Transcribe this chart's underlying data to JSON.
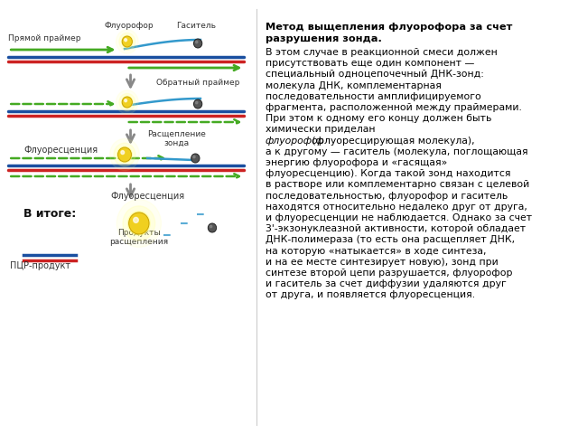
{
  "title_bold": "Метод выщепления флуорофора за счет\nразрушения зонда.",
  "body_text": "В этом случае в реакционной смеси должен\nприсутствовать еще один компонент —\nспециальный одноцепочечный ДНК-зонд:\nмолекула ДНК, комплементарная\nпоследовательности амплифицируемого\nфрагмента, расположенной между праймерами.\nПри этом к одному его концу должен быть\nхимически приделан\nфлуорофор (флуоресцирующая молекула),\nа к другому — гаситель (молекула, поглощающая\nэнергию флуорофора и «гасящая»\nфлуоресценцию). Когда такой зонд находится\nв растворе или комплементарно связан с целевой\nпоследовательностью, флуорофор и гаситель\nнаходятся относительно недалеко друг от друга,\nи флуоресценции не наблюдается. Однако за счет\n3'-экзонуклеазной активности, которой обладает\nДНК-полимераза (то есть она расщепляет ДНК,\nна которую «натыкается» в ходе синтеза,\nи на ее месте синтезирует новую), зонд при\nсинтезе второй цепи разрушается, флуорофор\nи гаситель за счет диффузии удаляются друг\nот друга, и появляется флуоресценция.",
  "italic_word": "флуорофор",
  "background_color": "#ffffff",
  "left_panel_bg": "#ffffff",
  "right_panel_bg": "#ffffff",
  "blue_line_color": "#1a4fa0",
  "red_line_color": "#cc2222",
  "green_arrow_color": "#44aa22",
  "probe_color": "#3399cc",
  "fluorophore_color": "#f0d020",
  "quencher_color": "#333333",
  "arrow_color": "#888888",
  "text_color": "#000000",
  "label_prямой": "Прямой праймер",
  "label_fluorofор": "Флуорофор",
  "label_gasitel": "Гаситель",
  "label_obratny": "Обратный праймер",
  "label_fluor": "Флуоресценция",
  "label_rasshchepl": "Расщепление\nзонда",
  "label_vitoge": "В итоге:",
  "label_fluor2": "Флуоресценция",
  "label_pcr": "ПЦР-продукт",
  "label_products": "Продукты\nрасщепления"
}
